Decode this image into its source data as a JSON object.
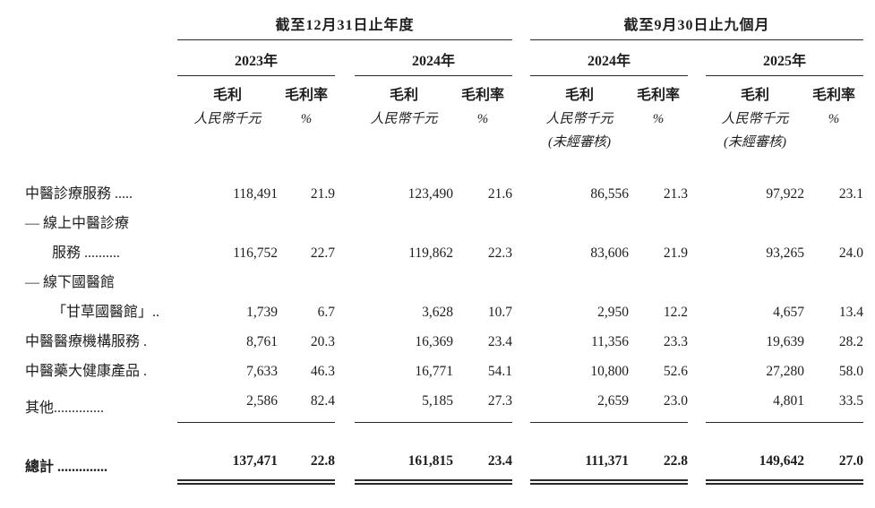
{
  "page": {
    "background": "#ffffff"
  },
  "colors": {
    "text": "#1e1e1e",
    "rule": "#2a2a2a"
  },
  "table": {
    "period_groups": [
      {
        "title": "截至12月31日止年度",
        "years": [
          {
            "label": "2023年",
            "columns": [
              {
                "head": "毛利",
                "unit": "人民幣千元"
              },
              {
                "head": "毛利率",
                "unit": "%"
              }
            ]
          },
          {
            "label": "2024年",
            "columns": [
              {
                "head": "毛利",
                "unit": "人民幣千元"
              },
              {
                "head": "毛利率",
                "unit": "%"
              }
            ]
          }
        ]
      },
      {
        "title": "截至9月30日止九個月",
        "years": [
          {
            "label": "2024年",
            "columns": [
              {
                "head": "毛利",
                "unit": "人民幣千元",
                "note": "(未經審核)"
              },
              {
                "head": "毛利率",
                "unit": "%"
              }
            ]
          },
          {
            "label": "2025年",
            "columns": [
              {
                "head": "毛利",
                "unit": "人民幣千元",
                "note": "(未經審核)"
              },
              {
                "head": "毛利率",
                "unit": "%"
              }
            ]
          }
        ]
      }
    ],
    "rows": [
      {
        "label_lines": [
          "中醫診療服務 ....."
        ],
        "values": [
          "118,491",
          "21.9",
          "123,490",
          "21.6",
          "86,556",
          "21.3",
          "97,922",
          "23.1"
        ]
      },
      {
        "label_lines": [
          "— 線上中醫診療",
          "服務 .........."
        ],
        "values": [
          "116,752",
          "22.7",
          "119,862",
          "22.3",
          "83,606",
          "21.9",
          "93,265",
          "24.0"
        ]
      },
      {
        "label_lines": [
          "— 線下國醫館",
          "「甘草國醫館」.."
        ],
        "values": [
          "1,739",
          "6.7",
          "3,628",
          "10.7",
          "2,950",
          "12.2",
          "4,657",
          "13.4"
        ]
      },
      {
        "label_lines": [
          "中醫醫療機構服務 ."
        ],
        "values": [
          "8,761",
          "20.3",
          "16,369",
          "23.4",
          "11,356",
          "23.3",
          "19,639",
          "28.2"
        ]
      },
      {
        "label_lines": [
          "中醫藥大健康產品 ."
        ],
        "values": [
          "7,633",
          "46.3",
          "16,771",
          "54.1",
          "10,800",
          "52.6",
          "27,280",
          "58.0"
        ]
      },
      {
        "label_lines": [
          "其他.............."
        ],
        "values": [
          "2,586",
          "82.4",
          "5,185",
          "27.3",
          "2,659",
          "23.0",
          "4,801",
          "33.5"
        ],
        "underline": true
      }
    ],
    "total_row": {
      "label_lines": [
        "總計 .............."
      ],
      "values": [
        "137,471",
        "22.8",
        "161,815",
        "23.4",
        "111,371",
        "22.8",
        "149,642",
        "27.0"
      ]
    }
  }
}
